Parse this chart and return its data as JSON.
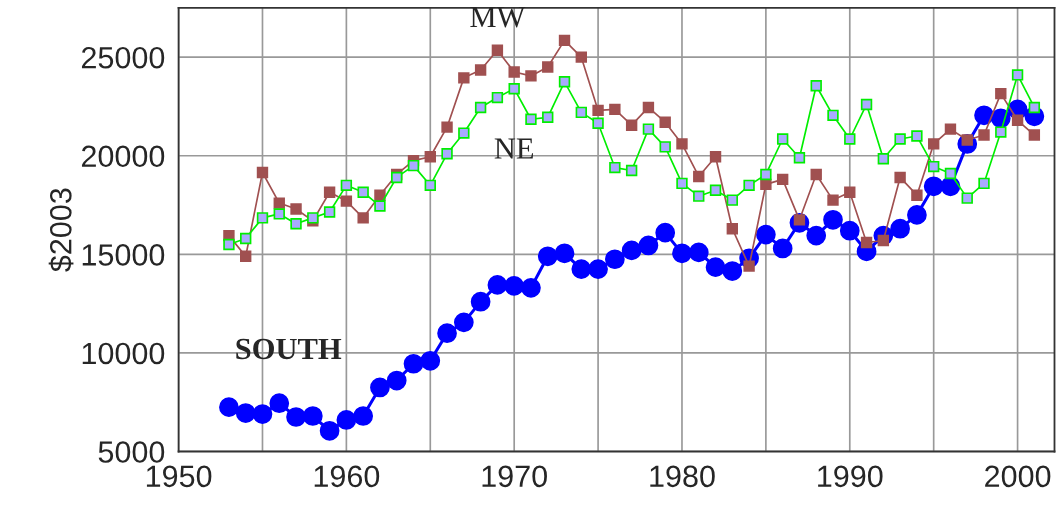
{
  "chart_data": {
    "type": "line",
    "ylabel": "$2003",
    "x": [
      1953,
      1954,
      1955,
      1956,
      1957,
      1958,
      1959,
      1960,
      1961,
      1962,
      1963,
      1964,
      1965,
      1966,
      1967,
      1968,
      1969,
      1970,
      1971,
      1972,
      1973,
      1974,
      1975,
      1976,
      1977,
      1978,
      1979,
      1980,
      1981,
      1982,
      1983,
      1984,
      1985,
      1986,
      1987,
      1988,
      1989,
      1990,
      1991,
      1992,
      1993,
      1994,
      1995,
      1996,
      1997,
      1998,
      1999,
      2000,
      2001
    ],
    "series": [
      {
        "name": "MW",
        "color": "#a05050",
        "marker": "square",
        "values": [
          15950,
          14900,
          19150,
          17600,
          17300,
          16700,
          18150,
          17700,
          16850,
          18000,
          19050,
          19750,
          19950,
          21450,
          23950,
          24350,
          25350,
          24250,
          24050,
          24500,
          25850,
          25000,
          22300,
          22350,
          21550,
          22450,
          21700,
          20600,
          18950,
          19950,
          16300,
          14400,
          18550,
          18800,
          16750,
          19050,
          17750,
          18150,
          15600,
          15700,
          18900,
          18000,
          20600,
          21350,
          20800,
          21050,
          23150,
          21800,
          21050
        ]
      },
      {
        "name": "NE",
        "color": "#00ee00",
        "marker": "square",
        "values": [
          15500,
          15800,
          16850,
          17050,
          16550,
          16850,
          17150,
          18500,
          18150,
          17450,
          18900,
          19500,
          18500,
          20100,
          21150,
          22450,
          22950,
          23400,
          21850,
          21950,
          23750,
          22200,
          21650,
          19400,
          19250,
          21350,
          20450,
          18600,
          17950,
          18250,
          17750,
          18500,
          19050,
          20850,
          19900,
          23550,
          22050,
          20850,
          22600,
          19850,
          20850,
          21000,
          19450,
          19100,
          17850,
          18600,
          21200,
          24100,
          22450
        ]
      },
      {
        "name": "SOUTH",
        "color": "#0000ff",
        "marker": "circle",
        "values": [
          7250,
          6950,
          6900,
          7450,
          6750,
          6800,
          6050,
          6600,
          6800,
          8250,
          8600,
          9450,
          9600,
          11000,
          11550,
          12600,
          13450,
          13400,
          13300,
          14900,
          15050,
          14250,
          14250,
          14750,
          15200,
          15450,
          16100,
          15050,
          15100,
          14350,
          14150,
          14800,
          16000,
          15300,
          16600,
          15950,
          16750,
          16200,
          15150,
          15950,
          16300,
          17000,
          18450,
          18450,
          20600,
          22050,
          21900,
          22350,
          22000
        ]
      }
    ],
    "xlim": [
      1950,
      2002.2
    ],
    "xticks": [
      1950,
      {
        "value": 1955,
        "label": null
      },
      1960,
      {
        "value": 1965,
        "label": null
      },
      1970,
      {
        "value": 1975,
        "label": null
      },
      1980,
      {
        "value": 1985,
        "label": null
      },
      1990,
      {
        "value": 1995,
        "label": null
      },
      2000
    ],
    "ylim": [
      5000,
      27500
    ],
    "yticks": [
      5000,
      10000,
      15000,
      20000,
      25000
    ],
    "grid": true,
    "legend": false
  }
}
